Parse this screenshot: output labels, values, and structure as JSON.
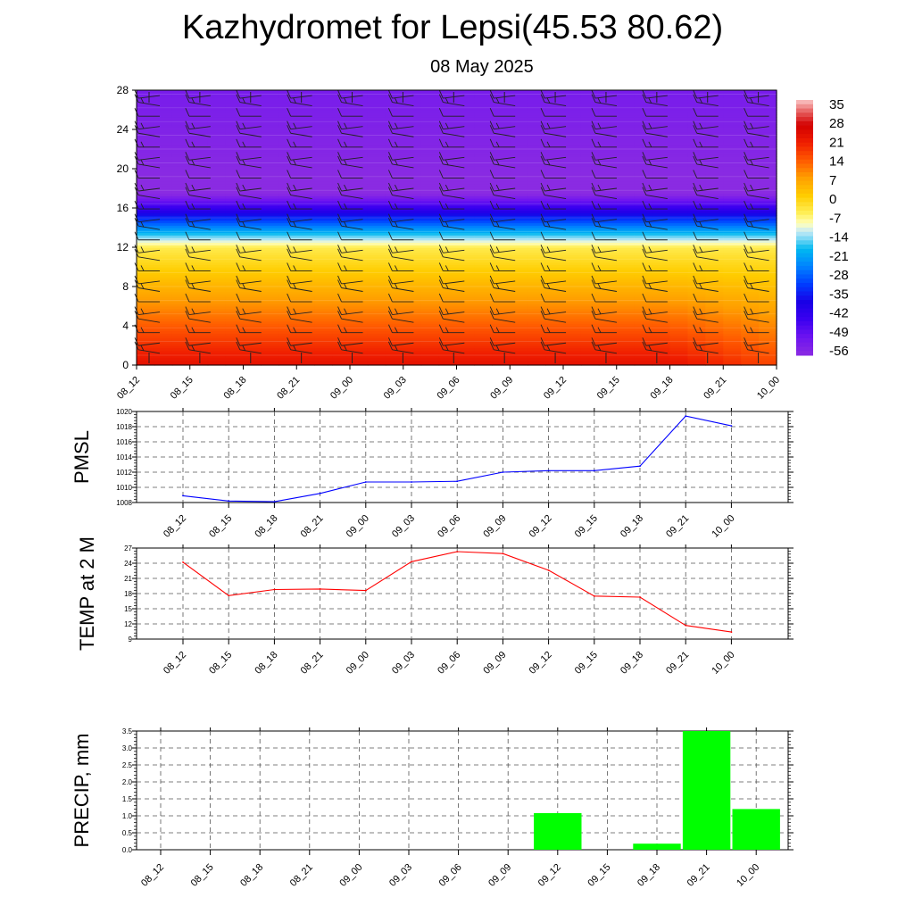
{
  "title": "Kazhydromet for Lepsi(45.53 80.62)",
  "subtitle": "08 May 2025",
  "colors": {
    "pmsl_line": "#0000ff",
    "temp_line": "#ff0000",
    "precip_bar": "#00ff00"
  },
  "chart_data": [
    {
      "type": "heatmap",
      "name": "temperature-wind-cross-section",
      "x": [
        "08_12",
        "08_15",
        "08_18",
        "08_21",
        "09_00",
        "09_03",
        "09_06",
        "09_09",
        "09_12",
        "09_15",
        "09_18",
        "09_21",
        "10_00"
      ],
      "yticks": [
        0,
        4,
        8,
        12,
        16,
        20,
        24,
        28
      ],
      "ylim": [
        0,
        28
      ],
      "colorbar": {
        "labels": [
          35,
          28,
          21,
          14,
          7,
          0,
          -7,
          -14,
          -21,
          -28,
          -35,
          -42,
          -49,
          -56
        ],
        "range": [
          -63,
          38
        ]
      },
      "wind_barbs": true
    },
    {
      "type": "line",
      "ylabel": "PMSL",
      "x": [
        "08_12",
        "08_15",
        "08_18",
        "08_21",
        "09_00",
        "09_03",
        "09_06",
        "09_09",
        "09_12",
        "09_15",
        "09_18",
        "09_21",
        "10_00"
      ],
      "values": [
        1008.9,
        1008.2,
        1008.1,
        1009.2,
        1010.7,
        1010.7,
        1010.8,
        1012.0,
        1012.2,
        1012.2,
        1012.8,
        1019.4,
        1018.1
      ],
      "ylim": [
        1008,
        1020
      ],
      "yticks": [
        1008,
        1010,
        1012,
        1014,
        1016,
        1018,
        1020
      ],
      "grid": true
    },
    {
      "type": "line",
      "ylabel": "TEMP at 2 M",
      "x": [
        "08_12",
        "08_15",
        "08_18",
        "08_21",
        "09_00",
        "09_03",
        "09_06",
        "09_09",
        "09_12",
        "09_15",
        "09_18",
        "09_21",
        "10_00"
      ],
      "values": [
        24.2,
        17.6,
        18.8,
        18.9,
        18.6,
        24.3,
        26.3,
        25.9,
        22.6,
        17.5,
        17.3,
        11.7,
        10.4
      ],
      "ylim": [
        9,
        27
      ],
      "yticks": [
        9,
        12,
        15,
        18,
        21,
        24,
        27
      ],
      "grid": true
    },
    {
      "type": "bar",
      "ylabel": "PRECIP, mm",
      "x": [
        "08_12",
        "08_15",
        "08_18",
        "08_21",
        "09_00",
        "09_03",
        "09_06",
        "09_09",
        "09_12",
        "09_15",
        "09_18",
        "09_21",
        "10_00"
      ],
      "values": [
        0,
        0,
        0,
        0,
        0,
        0,
        0,
        0,
        1.08,
        0,
        0.18,
        3.5,
        1.2
      ],
      "ylim": [
        0,
        3.5
      ],
      "yticks": [
        "0.0",
        "0.5",
        "1.0",
        "1.5",
        "2.0",
        "2.5",
        "3.0",
        "3.5"
      ],
      "grid": true
    }
  ]
}
